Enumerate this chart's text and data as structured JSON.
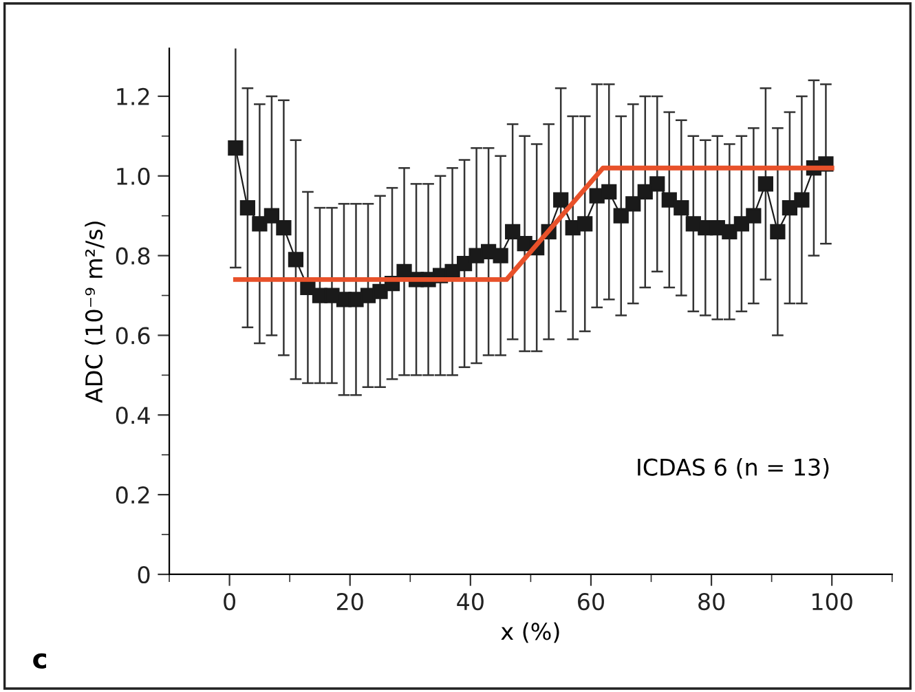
{
  "chart_data": {
    "type": "line",
    "xlabel": "x (%)",
    "ylabel": "ADC (10⁻⁹ m²/s)",
    "annotations": [
      "ICDAS 6 (n = 13)",
      "c"
    ],
    "xlim": [
      -10,
      110
    ],
    "ylim": [
      0,
      1.32
    ],
    "xticks": [
      0,
      {
        "value": 10,
        "label": null
      },
      20,
      {
        "value": 30,
        "label": null
      },
      40,
      {
        "value": 50,
        "label": null
      },
      60,
      {
        "value": 70,
        "label": null
      },
      80,
      {
        "value": 90,
        "label": null
      },
      100,
      {
        "value": -10,
        "label": null
      },
      {
        "value": 110,
        "label": null
      }
    ],
    "yticks": [
      0,
      {
        "value": 0.1,
        "label": null
      },
      0.2,
      {
        "value": 0.3,
        "label": null
      },
      0.4,
      {
        "value": 0.5,
        "label": null
      },
      0.6,
      {
        "value": 0.7,
        "label": null
      },
      0.8,
      {
        "value": 0.9,
        "label": null
      },
      {
        "value": 1.0,
        "label": "1.0"
      },
      {
        "value": 1.1,
        "label": null
      },
      1.2
    ],
    "grid": false,
    "legend": false,
    "series": [
      {
        "color": "#1a1a1a",
        "marker": "square",
        "line_style": "solid",
        "x": [
          1,
          3,
          5,
          7,
          9,
          11,
          13,
          15,
          17,
          19,
          21,
          23,
          25,
          27,
          29,
          31,
          33,
          35,
          37,
          39,
          41,
          43,
          45,
          47,
          49,
          51,
          53,
          55,
          57,
          59,
          61,
          63,
          65,
          67,
          69,
          71,
          73,
          75,
          77,
          79,
          81,
          83,
          85,
          87,
          89,
          91,
          93,
          95,
          97,
          99
        ],
        "values": [
          1.07,
          0.92,
          0.88,
          0.9,
          0.87,
          0.79,
          0.72,
          0.7,
          0.7,
          0.69,
          0.69,
          0.7,
          0.71,
          0.73,
          0.76,
          0.74,
          0.74,
          0.75,
          0.76,
          0.78,
          0.8,
          0.81,
          0.8,
          0.86,
          0.83,
          0.82,
          0.86,
          0.94,
          0.87,
          0.88,
          0.95,
          0.96,
          0.9,
          0.93,
          0.96,
          0.98,
          0.94,
          0.92,
          0.88,
          0.87,
          0.87,
          0.86,
          0.88,
          0.9,
          0.98,
          0.86,
          0.92,
          0.94,
          1.02,
          1.03
        ],
        "errors": [
          0.3,
          0.3,
          0.3,
          0.3,
          0.32,
          0.3,
          0.24,
          0.22,
          0.22,
          0.24,
          0.24,
          0.23,
          0.24,
          0.24,
          0.26,
          0.24,
          0.24,
          0.25,
          0.26,
          0.26,
          0.27,
          0.26,
          0.25,
          0.27,
          0.27,
          0.26,
          0.27,
          0.28,
          0.28,
          0.27,
          0.28,
          0.27,
          0.25,
          0.25,
          0.24,
          0.22,
          0.22,
          0.22,
          0.22,
          0.22,
          0.23,
          0.22,
          0.22,
          0.22,
          0.24,
          0.26,
          0.24,
          0.26,
          0.22,
          0.2
        ]
      },
      {
        "color": "#e8512a",
        "marker": "none",
        "line_style": "solid",
        "x": [
          1,
          46,
          62,
          100
        ],
        "values": [
          0.74,
          0.74,
          1.02,
          1.02
        ]
      }
    ]
  }
}
